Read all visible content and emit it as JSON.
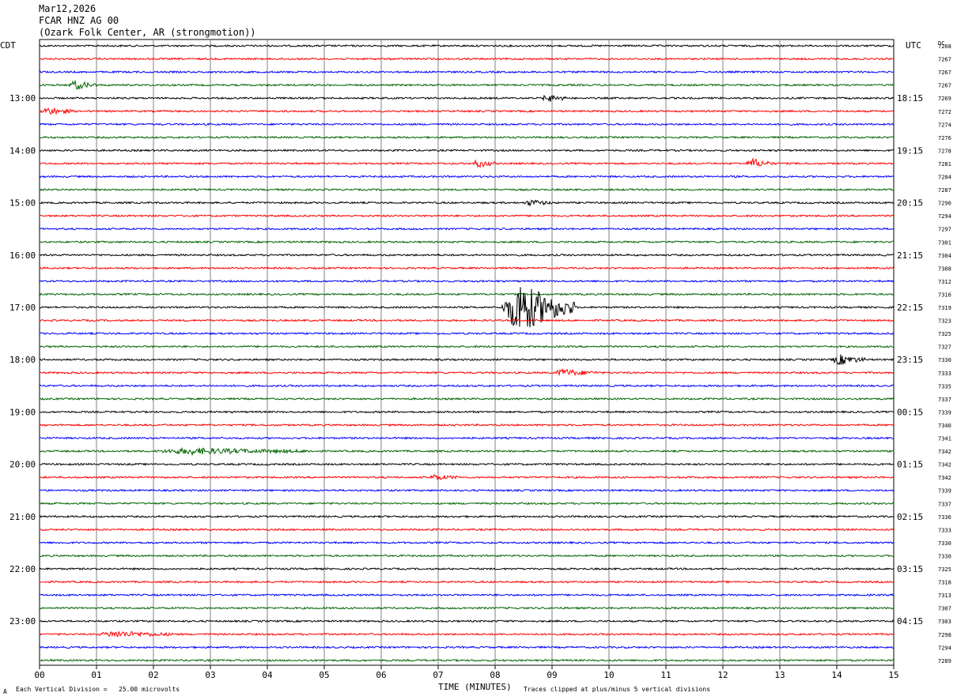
{
  "header": {
    "date": "Mar12,2026",
    "channel": "FCAR HNZ AG 00",
    "station": "(Ozark Folk Center, AR (strongmotion))"
  },
  "left_axis_title": "CDT",
  "right_axis_title": "UTC",
  "dc_title": "DC",
  "footer": {
    "scale_note": "Each Vertical Division =   25.00 microvolts",
    "xlabel": "TIME (MINUTES)",
    "clip_note": "Traces clipped at plus/minus 5 vertical divisions",
    "corner_mark": "A"
  },
  "colors": {
    "trace_cycle": [
      "#000000",
      "#ff0000",
      "#0000ff",
      "#006400"
    ],
    "grid": "#808080"
  },
  "chart_data": {
    "type": "line",
    "xlabel": "TIME (MINUTES)",
    "xlim": [
      0,
      15
    ],
    "x_ticks": [
      "00",
      "01",
      "02",
      "03",
      "04",
      "05",
      "06",
      "07",
      "08",
      "09",
      "10",
      "11",
      "12",
      "13",
      "14",
      "15"
    ],
    "trace_minutes": 15,
    "trace_count": 48,
    "local_hour_labels": [
      "13:00",
      "14:00",
      "15:00",
      "16:00",
      "17:00",
      "18:00",
      "19:00",
      "20:00",
      "21:00",
      "22:00",
      "23:00"
    ],
    "utc_hour_labels": [
      "18:15",
      "19:15",
      "20:15",
      "21:15",
      "22:15",
      "23:15",
      "00:15",
      "01:15",
      "02:15",
      "03:15",
      "04:15"
    ],
    "hour_label_first_trace": 4,
    "traces_per_hour": 4,
    "dc_offsets": [
      7268,
      7267,
      7267,
      7267,
      7269,
      7272,
      7274,
      7276,
      7278,
      7281,
      7284,
      7287,
      7290,
      7294,
      7297,
      7301,
      7304,
      7308,
      7312,
      7316,
      7319,
      7323,
      7325,
      7327,
      7330,
      7333,
      7335,
      7337,
      7339,
      7340,
      7341,
      7342,
      7342,
      7342,
      7339,
      7337,
      7336,
      7333,
      7330,
      7330,
      7325,
      7318,
      7313,
      7307,
      7303,
      7298,
      7294,
      7289
    ],
    "events": [
      {
        "trace": 20,
        "start_min": 8.1,
        "end_min": 9.4,
        "amplitude_divisions": 5,
        "note": "largest signal, clipped"
      },
      {
        "trace": 3,
        "start_min": 0.5,
        "end_min": 1.0,
        "amplitude_divisions": 0.8
      },
      {
        "trace": 4,
        "start_min": 8.8,
        "end_min": 9.3,
        "amplitude_divisions": 0.6
      },
      {
        "trace": 5,
        "start_min": 0.0,
        "end_min": 0.6,
        "amplitude_divisions": 0.6
      },
      {
        "trace": 9,
        "start_min": 12.4,
        "end_min": 12.9,
        "amplitude_divisions": 0.8
      },
      {
        "trace": 9,
        "start_min": 7.6,
        "end_min": 8.0,
        "amplitude_divisions": 0.7
      },
      {
        "trace": 12,
        "start_min": 8.5,
        "end_min": 9.0,
        "amplitude_divisions": 0.5
      },
      {
        "trace": 24,
        "start_min": 13.9,
        "end_min": 14.5,
        "amplitude_divisions": 0.9
      },
      {
        "trace": 25,
        "start_min": 9.0,
        "end_min": 9.8,
        "amplitude_divisions": 0.6
      },
      {
        "trace": 31,
        "start_min": 2.0,
        "end_min": 4.8,
        "amplitude_divisions": 0.5
      },
      {
        "trace": 45,
        "start_min": 1.0,
        "end_min": 2.4,
        "amplitude_divisions": 0.5
      },
      {
        "trace": 33,
        "start_min": 6.8,
        "end_min": 7.4,
        "amplitude_divisions": 0.4
      }
    ]
  }
}
